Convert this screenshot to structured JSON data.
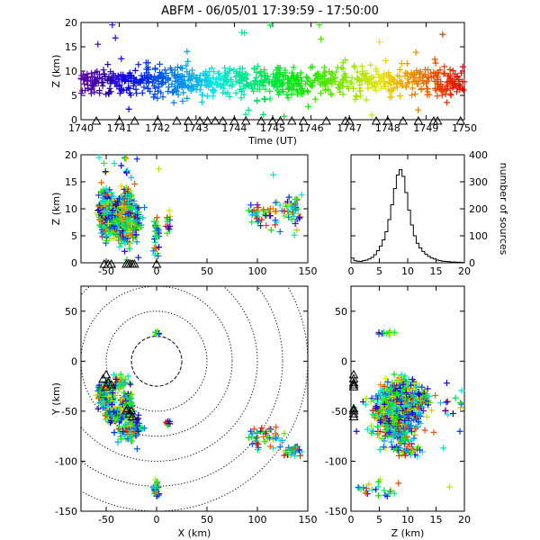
{
  "title": "ABFM - 06/05/01 17:39:59 - 17:50:00",
  "chart_data": [
    {
      "id": "time_height",
      "type": "scatter",
      "xlabel": "Time (UT)",
      "ylabel": "Z (km)",
      "xlim": [
        1740,
        1750
      ],
      "ylim": [
        0,
        20
      ],
      "xticks": [
        1740,
        1741,
        1742,
        1743,
        1744,
        1745,
        1746,
        1747,
        1748,
        1749,
        1750
      ],
      "yticks": [
        0,
        5,
        10,
        15,
        20
      ],
      "color_by": "time",
      "stations_time": [
        1740.4,
        1741.0,
        1741.4,
        1742.0,
        1742.5,
        1742.8,
        1743.1,
        1743.3,
        1743.5,
        1743.7,
        1744.0,
        1744.3,
        1744.7,
        1745.0,
        1745.2,
        1745.5,
        1745.8,
        1746.4,
        1746.9,
        1747.0,
        1747.7,
        1748.0,
        1748.4,
        1748.8,
        1749.2,
        1749.3,
        1749.9
      ]
    },
    {
      "id": "x_height",
      "type": "scatter",
      "xlabel": "",
      "ylabel": "Z (km)",
      "xlim": [
        -75,
        150
      ],
      "ylim": [
        0,
        20
      ],
      "xticks": [
        -50,
        0,
        50,
        100,
        150
      ],
      "yticks": [
        0,
        5,
        10,
        15,
        20
      ],
      "stations_x": [
        -52,
        -48,
        -45,
        -30,
        -28,
        -26,
        -24,
        -22,
        0
      ]
    },
    {
      "id": "altitude_histogram",
      "type": "line",
      "xlabel": "",
      "ylabel": "number of sources",
      "xlim": [
        0,
        20
      ],
      "ylim": [
        0,
        400
      ],
      "xticks": [
        0,
        5,
        10,
        15,
        20
      ],
      "yticks": [
        0,
        100,
        200,
        300,
        400
      ],
      "x": [
        0,
        0.5,
        1,
        1.5,
        2,
        2.5,
        3,
        3.5,
        4,
        4.5,
        5,
        5.5,
        6,
        6.5,
        7,
        7.5,
        8,
        8.5,
        9,
        9.5,
        10,
        10.5,
        11,
        11.5,
        12,
        12.5,
        13,
        13.5,
        14,
        14.5,
        15,
        15.5,
        16,
        16.5,
        17,
        17.5,
        18,
        18.5,
        19,
        19.5
      ],
      "values": [
        18,
        8,
        6,
        5,
        8,
        10,
        14,
        20,
        30,
        45,
        62,
        85,
        115,
        160,
        215,
        275,
        325,
        345,
        320,
        260,
        195,
        140,
        100,
        72,
        55,
        42,
        32,
        24,
        18,
        14,
        10,
        8,
        6,
        5,
        4,
        3,
        3,
        2,
        2,
        1
      ]
    },
    {
      "id": "plan_view",
      "type": "scatter",
      "xlabel": "X (km)",
      "ylabel": "Y (km)",
      "xlim": [
        -75,
        150
      ],
      "ylim": [
        -150,
        75
      ],
      "xticks": [
        -50,
        0,
        50,
        100,
        150
      ],
      "yticks": [
        -150,
        -100,
        -50,
        0,
        50
      ],
      "range_rings_km": [
        25,
        50,
        75,
        100,
        125,
        150
      ],
      "stations": [
        [
          -50,
          -14
        ],
        [
          -53,
          -18
        ],
        [
          -48,
          -22
        ],
        [
          -45,
          -24
        ],
        [
          -50,
          -26
        ],
        [
          -30,
          -50
        ],
        [
          -27,
          -53
        ],
        [
          -25,
          -50
        ],
        [
          -24,
          -56
        ],
        [
          -29,
          -48
        ]
      ]
    },
    {
      "id": "z_y_view",
      "type": "scatter",
      "xlabel": "Z (km)",
      "ylabel": "Y (km)",
      "xlim": [
        0,
        20
      ],
      "ylim": [
        -150,
        75
      ],
      "xticks": [
        0,
        5,
        10,
        15,
        20
      ],
      "yticks": [
        -150,
        -100,
        -50,
        0,
        50
      ],
      "stations_y": [
        -14,
        -18,
        -22,
        -24,
        -26,
        -48,
        -50,
        -53,
        -56
      ]
    }
  ]
}
